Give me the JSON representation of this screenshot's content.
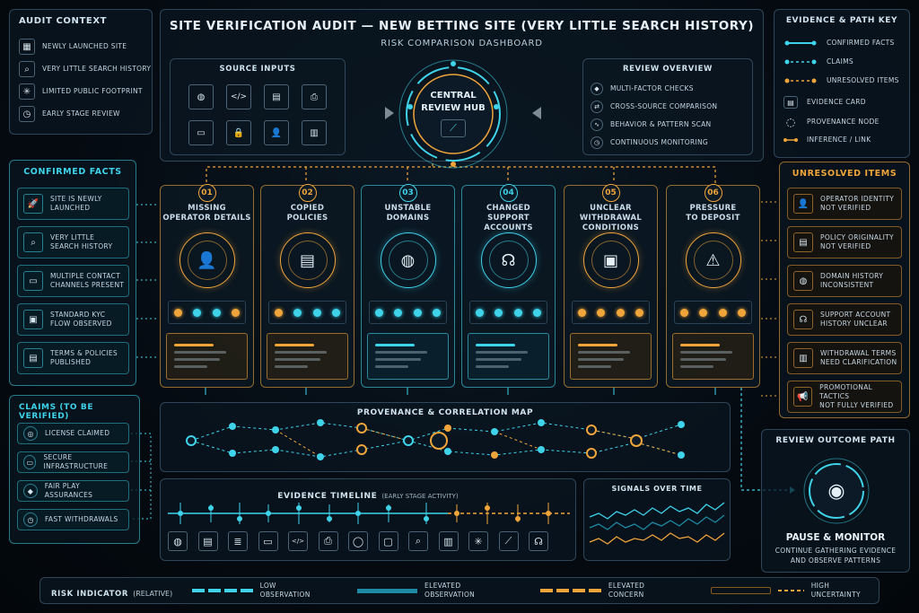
{
  "header": {
    "title": "SITE VERIFICATION AUDIT — NEW BETTING SITE (VERY LITTLE SEARCH HISTORY)",
    "subtitle": "RISK COMPARISON DASHBOARD"
  },
  "audit_context": {
    "title": "AUDIT CONTEXT",
    "items": [
      {
        "icon": "calendar-icon",
        "label": "NEWLY LAUNCHED SITE"
      },
      {
        "icon": "search-icon",
        "label": "VERY LITTLE SEARCH HISTORY"
      },
      {
        "icon": "network-icon",
        "label": "LIMITED PUBLIC FOOTPRINT"
      },
      {
        "icon": "clock-icon",
        "label": "EARLY STAGE REVIEW"
      }
    ]
  },
  "source_inputs": {
    "title": "SOURCE INPUTS",
    "icons": [
      "globe-icon",
      "code-icon",
      "document-icon",
      "printer-icon",
      "chat-icon",
      "lock-icon",
      "user-icon",
      "file-icon"
    ]
  },
  "hub": {
    "title_line1": "CENTRAL",
    "title_line2": "REVIEW HUB"
  },
  "review_overview": {
    "title": "REVIEW OVERVIEW",
    "items": [
      {
        "icon": "shield-icon",
        "label": "MULTI-FACTOR CHECKS"
      },
      {
        "icon": "compare-icon",
        "label": "CROSS-SOURCE COMPARISON"
      },
      {
        "icon": "pattern-icon",
        "label": "BEHAVIOR & PATTERN SCAN"
      },
      {
        "icon": "monitor-icon",
        "label": "CONTINUOUS MONITORING"
      }
    ]
  },
  "evidence_key": {
    "title": "EVIDENCE & PATH KEY",
    "items": [
      {
        "label": "CONFIRMED FACTS",
        "color": "#3fd3ea",
        "style": "solid"
      },
      {
        "label": "CLAIMS",
        "color": "#3fd3ea",
        "style": "dashed"
      },
      {
        "label": "UNRESOLVED ITEMS",
        "color": "#f0a53a",
        "style": "dashed"
      },
      {
        "label": "EVIDENCE CARD",
        "icon": "card-icon"
      },
      {
        "label": "PROVENANCE NODE",
        "icon": "node-icon"
      },
      {
        "label": "INFERENCE / LINK",
        "color": "#f0a53a",
        "style": "link"
      }
    ]
  },
  "confirmed_facts": {
    "title": "CONFIRMED FACTS",
    "items": [
      {
        "icon": "rocket-icon",
        "line1": "SITE IS NEWLY",
        "line2": "LAUNCHED"
      },
      {
        "icon": "search-icon",
        "line1": "VERY LITTLE",
        "line2": "SEARCH HISTORY"
      },
      {
        "icon": "chat-icon",
        "line1": "MULTIPLE CONTACT",
        "line2": "CHANNELS PRESENT"
      },
      {
        "icon": "id-card-icon",
        "line1": "STANDARD KYC",
        "line2": "FLOW OBSERVED"
      },
      {
        "icon": "document-icon",
        "line1": "TERMS & POLICIES",
        "line2": "PUBLISHED"
      }
    ]
  },
  "claims": {
    "title": "CLAIMS (TO BE VERIFIED)",
    "items": [
      {
        "icon": "badge-icon",
        "label": "LICENSE CLAIMED"
      },
      {
        "icon": "server-icon",
        "label": "SECURE INFRASTRUCTURE"
      },
      {
        "icon": "shield-icon",
        "label": "FAIR PLAY ASSURANCES"
      },
      {
        "icon": "clock-icon",
        "label": "FAST WITHDRAWALS"
      }
    ]
  },
  "issues": [
    {
      "num": "01",
      "line1": "MISSING",
      "line2": "OPERATOR DETAILS",
      "icon": "user-icon",
      "glyph": "👤",
      "theme": "amber",
      "dots": [
        "amber",
        "cyan",
        "cyan",
        "amber"
      ]
    },
    {
      "num": "02",
      "line1": "COPIED",
      "line2": "POLICIES",
      "icon": "documents-icon",
      "glyph": "▤",
      "theme": "amber",
      "dots": [
        "amber",
        "cyan",
        "cyan",
        "cyan"
      ]
    },
    {
      "num": "03",
      "line1": "UNSTABLE",
      "line2": "DOMAINS",
      "icon": "globe-icon",
      "glyph": "◍",
      "theme": "cyan",
      "dots": [
        "cyan",
        "cyan",
        "cyan",
        "cyan"
      ]
    },
    {
      "num": "04",
      "line1": "CHANGED",
      "line2": "SUPPORT ACCOUNTS",
      "icon": "headset-icon",
      "glyph": "☊",
      "theme": "cyan",
      "dots": [
        "cyan",
        "cyan",
        "cyan",
        "cyan"
      ]
    },
    {
      "num": "05",
      "line1": "UNCLEAR",
      "line2": "WITHDRAWAL CONDITIONS",
      "icon": "wallet-icon",
      "glyph": "▣",
      "theme": "amber",
      "dots": [
        "amber",
        "amber",
        "amber",
        "amber"
      ]
    },
    {
      "num": "06",
      "line1": "PRESSURE",
      "line2": "TO DEPOSIT",
      "icon": "warning-icon",
      "glyph": "⚠",
      "theme": "amber",
      "dots": [
        "amber",
        "amber",
        "amber",
        "amber"
      ]
    }
  ],
  "unresolved": {
    "title": "UNRESOLVED ITEMS",
    "items": [
      {
        "icon": "user-icon",
        "line1": "OPERATOR IDENTITY",
        "line2": "NOT VERIFIED"
      },
      {
        "icon": "document-icon",
        "line1": "POLICY ORIGINALITY",
        "line2": "NOT VERIFIED"
      },
      {
        "icon": "globe-icon",
        "line1": "DOMAIN HISTORY",
        "line2": "INCONSISTENT"
      },
      {
        "icon": "headset-icon",
        "line1": "SUPPORT ACCOUNT",
        "line2": "HISTORY UNCLEAR"
      },
      {
        "icon": "document-icon",
        "line1": "WITHDRAWAL TERMS",
        "line2": "NEED CLARIFICATION"
      },
      {
        "icon": "megaphone-icon",
        "line1": "PROMOTIONAL TACTICS",
        "line2": "NOT FULLY VERIFIED"
      }
    ]
  },
  "provenance": {
    "title": "PROVENANCE & CORRELATION MAP"
  },
  "timeline": {
    "title_main": "EVIDENCE TIMELINE",
    "title_note": "(EARLY STAGE ACTIVITY)",
    "icons": [
      "globe-icon",
      "document-icon",
      "list-icon",
      "chat-icon",
      "code-icon",
      "printer-icon",
      "speech-icon",
      "message-icon",
      "search-icon",
      "file-icon",
      "network-icon",
      "chart-icon",
      "headset-icon"
    ]
  },
  "signals": {
    "title": "SIGNALS OVER TIME"
  },
  "outcome": {
    "title": "REVIEW OUTCOME PATH",
    "result": "PAUSE & MONITOR",
    "line1": "CONTINUE GATHERING EVIDENCE",
    "line2": "AND OBSERVE PATTERNS"
  },
  "risk_bar": {
    "title_main": "RISK INDICATOR",
    "title_note": "(RELATIVE)",
    "items": [
      {
        "label": "LOW OBSERVATION",
        "color": "#3fd3ea"
      },
      {
        "label": "ELEVATED OBSERVATION",
        "color": "#1f8aa3"
      },
      {
        "label": "ELEVATED CONCERN",
        "color": "#f0a53a"
      },
      {
        "label": "HIGH UNCERTAINTY",
        "color": "#8a5a1a"
      }
    ]
  }
}
